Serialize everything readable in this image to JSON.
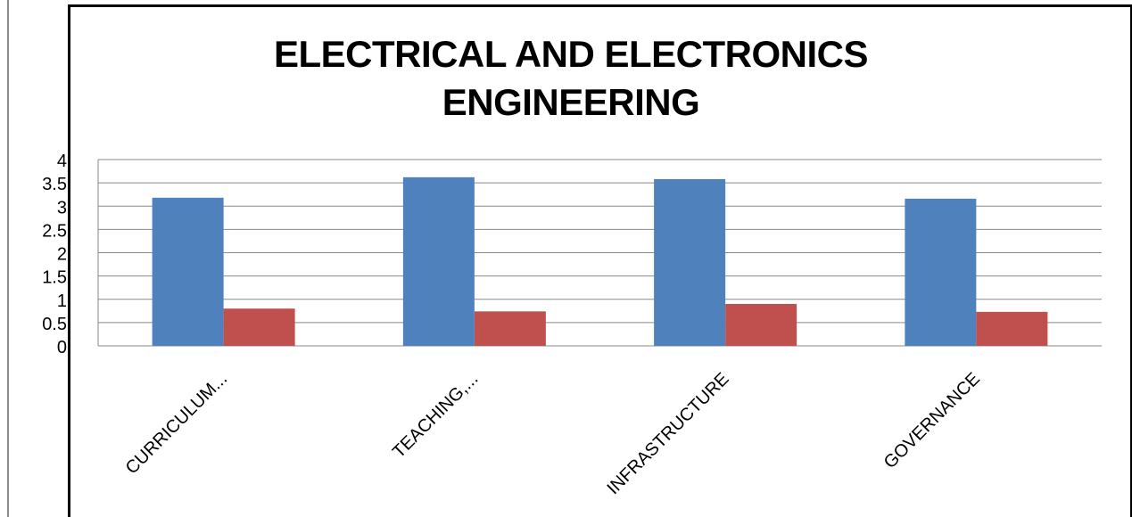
{
  "chart_data": {
    "type": "bar",
    "title_lines": [
      "ELECTRICAL AND ELECTRONICS",
      "ENGINEERING"
    ],
    "categories": [
      "CURRICULUM...",
      "TEACHING,...",
      "INFRASTRUCTURE",
      "GOVERNANCE"
    ],
    "series": [
      {
        "color": "#4f81bd",
        "values": [
          3.18,
          3.62,
          3.58,
          3.16
        ]
      },
      {
        "color": "#c0504d",
        "values": [
          0.8,
          0.74,
          0.9,
          0.73
        ]
      }
    ],
    "ylim": [
      0,
      4
    ],
    "yticks": [
      "0",
      "0.5",
      "1",
      "1.5",
      "2",
      "2.5",
      "3",
      "3.5",
      "4"
    ],
    "ytick_values": [
      0,
      0.5,
      1,
      1.5,
      2,
      2.5,
      3,
      3.5,
      4
    ],
    "grid": true,
    "legend": "none",
    "xlabel": "",
    "ylabel": ""
  }
}
